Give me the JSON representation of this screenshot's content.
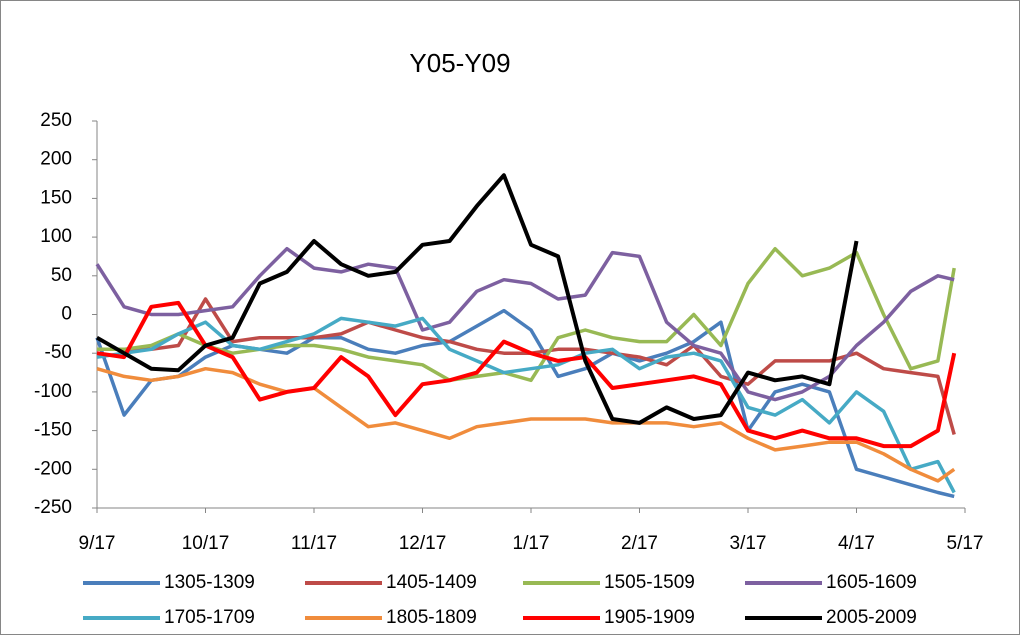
{
  "chart_data": {
    "type": "line",
    "title": "Y05-Y09",
    "x": [
      0,
      0.25,
      0.5,
      0.75,
      1,
      1.25,
      1.5,
      1.75,
      2,
      2.25,
      2.5,
      2.75,
      3,
      3.25,
      3.5,
      3.75,
      4,
      4.25,
      4.5,
      4.75,
      5,
      5.25,
      5.5,
      5.75,
      6,
      6.25,
      6.5,
      6.75,
      7,
      7.25,
      7.5,
      7.75,
      7.9
    ],
    "xlim": [
      0,
      8
    ],
    "xticks": [
      {
        "value": 0,
        "label": "9/17"
      },
      {
        "value": 1,
        "label": "10/17"
      },
      {
        "value": 2,
        "label": "11/17"
      },
      {
        "value": 3,
        "label": "12/17"
      },
      {
        "value": 4,
        "label": "1/17"
      },
      {
        "value": 5,
        "label": "2/17"
      },
      {
        "value": 6,
        "label": "3/17"
      },
      {
        "value": 7,
        "label": "4/17"
      },
      {
        "value": 8,
        "label": "5/17"
      }
    ],
    "ylim": [
      -250,
      250
    ],
    "yticks": [
      -250,
      -200,
      -150,
      -100,
      -50,
      0,
      50,
      100,
      150,
      200,
      250
    ],
    "grid": false,
    "series": [
      {
        "name": "1305-1309",
        "color": "#4a7ebb",
        "values": [
          -30,
          -130,
          -85,
          -80,
          -55,
          -40,
          -45,
          -50,
          -30,
          -30,
          -45,
          -50,
          -40,
          -35,
          -15,
          5,
          -20,
          -80,
          -70,
          -50,
          -60,
          -50,
          -35,
          -10,
          -150,
          -100,
          -90,
          -100,
          -200,
          -210,
          -220,
          -230,
          -235
        ]
      },
      {
        "name": "1405-1409",
        "color": "#be4b48",
        "values": [
          -45,
          -45,
          -45,
          -40,
          20,
          -35,
          -30,
          -30,
          -30,
          -25,
          -10,
          -20,
          -30,
          -35,
          -45,
          -50,
          -50,
          -45,
          -45,
          -50,
          -55,
          -65,
          -40,
          -80,
          -90,
          -60,
          -60,
          -60,
          -50,
          -70,
          -75,
          -80,
          -155
        ]
      },
      {
        "name": "1505-1509",
        "color": "#98b954",
        "values": [
          -45,
          -45,
          -40,
          -25,
          -40,
          -50,
          -45,
          -40,
          -40,
          -45,
          -55,
          -60,
          -65,
          -85,
          -80,
          -75,
          -85,
          -30,
          -20,
          -30,
          -35,
          -35,
          0,
          -40,
          40,
          85,
          50,
          60,
          80,
          0,
          -70,
          -60,
          60
        ]
      },
      {
        "name": "1605-1609",
        "color": "#7d60a0",
        "values": [
          65,
          10,
          0,
          0,
          5,
          10,
          50,
          85,
          60,
          55,
          65,
          60,
          -20,
          -10,
          30,
          45,
          40,
          20,
          25,
          80,
          75,
          -10,
          -40,
          -50,
          -100,
          -110,
          -100,
          -80,
          -40,
          -10,
          30,
          50,
          45
        ]
      },
      {
        "name": "1705-1709",
        "color": "#46aac5",
        "values": [
          -55,
          -50,
          -45,
          -25,
          -10,
          -40,
          -45,
          -35,
          -25,
          -5,
          -10,
          -15,
          -5,
          -45,
          -60,
          -75,
          -70,
          -65,
          -50,
          -45,
          -70,
          -55,
          -50,
          -60,
          -120,
          -130,
          -110,
          -140,
          -100,
          -125,
          -200,
          -190,
          -230
        ]
      },
      {
        "name": "1805-1809",
        "color": "#f08c3c",
        "values": [
          -70,
          -80,
          -85,
          -80,
          -70,
          -75,
          -90,
          -100,
          -95,
          -120,
          -145,
          -140,
          -150,
          -160,
          -145,
          -140,
          -135,
          -135,
          -135,
          -140,
          -140,
          -140,
          -145,
          -140,
          -160,
          -175,
          -170,
          -165,
          -165,
          -180,
          -200,
          -215,
          -200
        ]
      },
      {
        "name": "1905-1909",
        "color": "#ff0000",
        "values": [
          -50,
          -55,
          10,
          15,
          -40,
          -55,
          -110,
          -100,
          -95,
          -55,
          -80,
          -130,
          -90,
          -85,
          -75,
          -35,
          -50,
          -60,
          -55,
          -95,
          -90,
          -85,
          -80,
          -90,
          -150,
          -160,
          -150,
          -160,
          -160,
          -170,
          -170,
          -150,
          -50
        ]
      },
      {
        "name": "2005-2009",
        "color": "#000000",
        "values": [
          -30,
          -50,
          -70,
          -72,
          -40,
          -30,
          40,
          55,
          95,
          65,
          50,
          55,
          90,
          95,
          140,
          180,
          90,
          75,
          -60,
          -135,
          -140,
          -120,
          -135,
          -130,
          -75,
          -85,
          -80,
          -90,
          95,
          null,
          null,
          null,
          null
        ]
      }
    ]
  }
}
